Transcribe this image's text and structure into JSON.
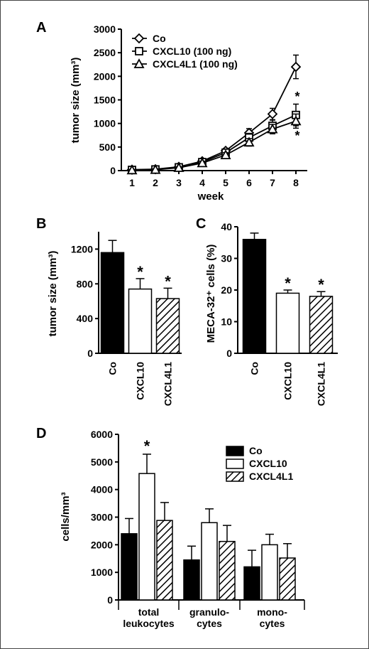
{
  "chart_data": [
    {
      "panel": "A",
      "type": "line",
      "xlabel": "week",
      "ylabel": "tumor size (mm³)",
      "x": [
        1,
        2,
        3,
        4,
        5,
        6,
        7,
        8
      ],
      "ylim": [
        0,
        3000
      ],
      "yticks": [
        "0",
        "500",
        "1000",
        "1500",
        "2000",
        "2500",
        "3000"
      ],
      "xticks": [
        "1",
        "2",
        "3",
        "4",
        "5",
        "6",
        "7",
        "8"
      ],
      "series": [
        {
          "name": "Co",
          "marker": "diamond",
          "values": [
            20,
            30,
            80,
            200,
            420,
            800,
            1200,
            2200
          ],
          "errors": [
            10,
            15,
            20,
            40,
            50,
            90,
            120,
            250
          ]
        },
        {
          "name": "CXCL10 (100 ng)",
          "marker": "square",
          "values": [
            15,
            25,
            70,
            180,
            380,
            700,
            950,
            1180
          ],
          "errors": [
            10,
            15,
            20,
            40,
            50,
            90,
            120,
            230
          ]
        },
        {
          "name": "CXCL4L1 (100 ng)",
          "marker": "triangle",
          "values": [
            10,
            20,
            60,
            160,
            330,
            600,
            880,
            1050
          ],
          "errors": [
            10,
            15,
            20,
            40,
            50,
            80,
            100,
            150
          ]
        }
      ],
      "asterisks": [
        "*",
        "*"
      ],
      "legend": "top-left"
    },
    {
      "panel": "B",
      "type": "bar",
      "ylabel": "tumor size (mm³)",
      "ylim": [
        0,
        1400
      ],
      "yticks": [
        "0",
        "400",
        "800",
        "1200"
      ],
      "categories": [
        "Co",
        "CXCL10",
        "CXCL4L1"
      ],
      "values": [
        1160,
        740,
        630
      ],
      "errors": [
        140,
        120,
        120
      ],
      "fills": [
        "solid",
        "open",
        "hatched"
      ],
      "significance": [
        "",
        "*",
        "*"
      ]
    },
    {
      "panel": "C",
      "type": "bar",
      "ylabel": "MECA-32⁺ cells (%)",
      "ylim": [
        0,
        40
      ],
      "yticks": [
        "0",
        "10",
        "20",
        "30",
        "40"
      ],
      "categories": [
        "Co",
        "CXCL10",
        "CXCL4L1"
      ],
      "values": [
        36,
        19,
        18
      ],
      "errors": [
        2,
        1,
        1.5
      ],
      "fills": [
        "solid",
        "open",
        "hatched"
      ],
      "significance": [
        "",
        "*",
        "*"
      ]
    },
    {
      "panel": "D",
      "type": "bar",
      "ylabel": "cells/mm³",
      "ylim": [
        0,
        6000
      ],
      "yticks": [
        "0",
        "1000",
        "2000",
        "3000",
        "4000",
        "5000",
        "6000"
      ],
      "groups": [
        "total leukocytes",
        "granulo-cytes",
        "mono-cytes"
      ],
      "group_lines": [
        [
          "total",
          "leukocytes"
        ],
        [
          "granulo-",
          "cytes"
        ],
        [
          "mono-",
          "cytes"
        ]
      ],
      "series": [
        {
          "name": "Co",
          "fill": "solid",
          "values": [
            2400,
            1450,
            1200
          ],
          "errors": [
            550,
            500,
            600
          ]
        },
        {
          "name": "CXCL10",
          "fill": "open",
          "values": [
            4580,
            2800,
            2000
          ],
          "errors": [
            700,
            500,
            380
          ]
        },
        {
          "name": "CXCL4L1",
          "fill": "hatched",
          "values": [
            2880,
            2120,
            1520
          ],
          "errors": [
            650,
            580,
            520
          ]
        }
      ],
      "significance": [
        [
          "",
          "*",
          ""
        ],
        [
          "",
          "",
          ""
        ],
        [
          "",
          "",
          ""
        ]
      ],
      "legend": "top-right"
    }
  ]
}
